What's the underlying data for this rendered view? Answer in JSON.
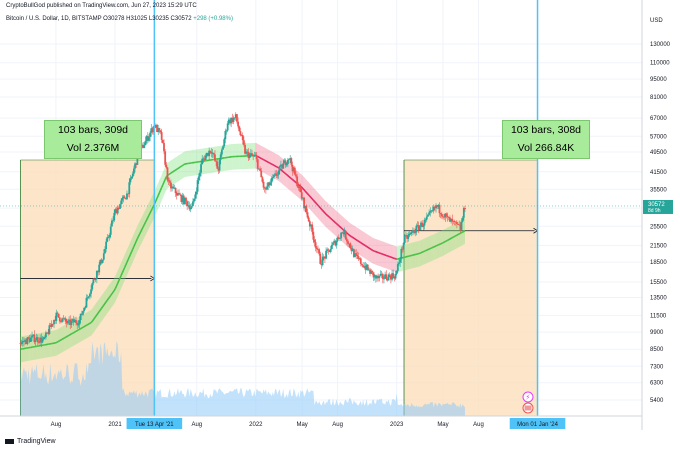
{
  "header": {
    "published": "CryptoBullGod published on TradingView.com, Jun 27, 2023 15:29 UTC",
    "symbol": "Bitcoin / U.S. Dollar, 1D, BITSTAMP",
    "ohlc": "O30278 H31025 L30235 C30572",
    "change": "+298 (+0.98%)"
  },
  "price_axis": {
    "currency": "USD",
    "last_price": "30572",
    "last_price_sub": "8d 9h"
  },
  "boxes": [
    {
      "line1": "103 bars, 309d",
      "line2": "Vol 2.376M"
    },
    {
      "line1": "103 bars, 308d",
      "line2": "Vol 266.84K"
    }
  ],
  "footer": {
    "brand": "TradingView"
  },
  "colors": {
    "up": "#26a69a",
    "down": "#ef5350",
    "band_up": "#70e070",
    "band_down": "#f06080",
    "range": "#fce0c0",
    "cursor": "#4fc3f7"
  },
  "chart_data": {
    "type": "line",
    "scale": "log",
    "ylim": [
      4400,
      190000
    ],
    "yticks": [
      5400,
      6300,
      7300,
      8500,
      9900,
      11500,
      13500,
      15500,
      18500,
      21500,
      25500,
      30000,
      35500,
      41500,
      49500,
      57000,
      67000,
      81000,
      95000,
      110000,
      130000
    ],
    "xticks": [
      {
        "label": "Aug",
        "date": "2020-08-01"
      },
      {
        "label": "2021",
        "date": "2021-01-01"
      },
      {
        "label": "Tue 13 Apr '21",
        "date": "2021-04-13",
        "highlight": true
      },
      {
        "label": "Aug",
        "date": "2021-08-01"
      },
      {
        "label": "2022",
        "date": "2022-01-01"
      },
      {
        "label": "May",
        "date": "2022-05-01"
      },
      {
        "label": "Aug",
        "date": "2022-08-01"
      },
      {
        "label": "2023",
        "date": "2023-01-01"
      },
      {
        "label": "May",
        "date": "2023-05-01"
      },
      {
        "label": "Aug",
        "date": "2023-08-01"
      },
      {
        "label": "Mon 01 Jan '24",
        "date": "2024-01-01",
        "highlight": true
      }
    ],
    "series": [
      {
        "values": [
          [
            "2020-05-01",
            9000
          ],
          [
            "2020-06-01",
            9400
          ],
          [
            "2020-07-01",
            9200
          ],
          [
            "2020-08-01",
            11500
          ],
          [
            "2020-09-01",
            10700
          ],
          [
            "2020-10-01",
            11000
          ],
          [
            "2020-11-01",
            15000
          ],
          [
            "2020-12-01",
            19500
          ],
          [
            "2021-01-01",
            29000
          ],
          [
            "2021-02-01",
            34000
          ],
          [
            "2021-03-01",
            48000
          ],
          [
            "2021-04-13",
            63000
          ],
          [
            "2021-05-01",
            57000
          ],
          [
            "2021-05-20",
            37000
          ],
          [
            "2021-06-20",
            33000
          ],
          [
            "2021-07-20",
            30000
          ],
          [
            "2021-08-15",
            46000
          ],
          [
            "2021-09-07",
            51000
          ],
          [
            "2021-09-25",
            42000
          ],
          [
            "2021-10-20",
            65000
          ],
          [
            "2021-11-10",
            67500
          ],
          [
            "2021-12-05",
            49000
          ],
          [
            "2022-01-01",
            47000
          ],
          [
            "2022-01-24",
            35000
          ],
          [
            "2022-03-28",
            47500
          ],
          [
            "2022-05-12",
            29000
          ],
          [
            "2022-06-18",
            18500
          ],
          [
            "2022-08-15",
            24500
          ],
          [
            "2022-09-15",
            19500
          ],
          [
            "2022-11-09",
            16000
          ],
          [
            "2022-12-30",
            16500
          ],
          [
            "2023-01-20",
            22500
          ],
          [
            "2023-02-15",
            24500
          ],
          [
            "2023-03-15",
            26500
          ],
          [
            "2023-04-14",
            30500
          ],
          [
            "2023-05-15",
            27000
          ],
          [
            "2023-06-15",
            25000
          ],
          [
            "2023-06-27",
            30572
          ]
        ]
      },
      {
        "values": [
          [
            "2020-05-01",
            8500
          ],
          [
            "2020-08-01",
            9000
          ],
          [
            "2020-11-01",
            10800
          ],
          [
            "2021-01-01",
            14500
          ],
          [
            "2021-03-01",
            23000
          ],
          [
            "2021-04-13",
            31000
          ],
          [
            "2021-05-15",
            40000
          ],
          [
            "2021-07-01",
            44500
          ],
          [
            "2021-09-01",
            46000
          ],
          [
            "2021-11-01",
            47500
          ],
          [
            "2022-01-01",
            48000
          ],
          [
            "2022-03-01",
            43000
          ],
          [
            "2022-05-01",
            36000
          ],
          [
            "2022-07-01",
            28500
          ],
          [
            "2022-09-01",
            23500
          ],
          [
            "2022-11-01",
            20500
          ],
          [
            "2023-01-01",
            19000
          ],
          [
            "2023-03-01",
            20000
          ],
          [
            "2023-05-01",
            22000
          ],
          [
            "2023-06-27",
            24500
          ]
        ]
      }
    ],
    "date_ranges": [
      {
        "from": "2020-05-01",
        "to": "2021-04-13",
        "measured_price": 16000
      },
      {
        "from": "2023-01-20",
        "to": "2024-01-01",
        "measured_price": 24500
      }
    ]
  }
}
